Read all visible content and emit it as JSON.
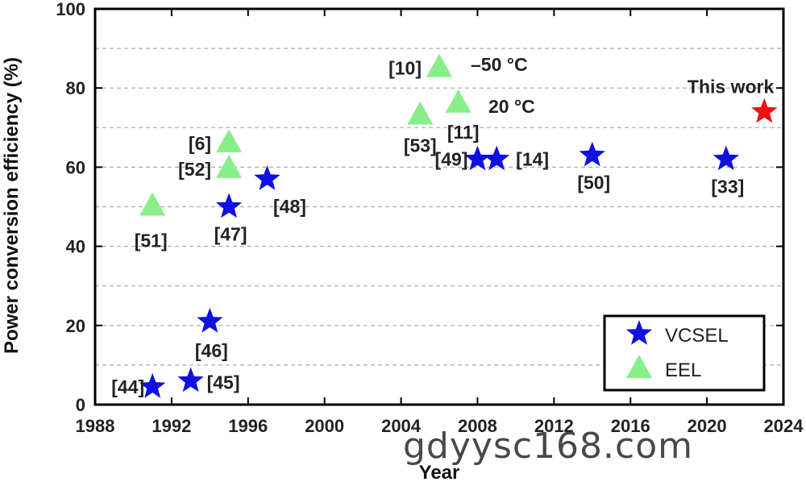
{
  "chart_data": {
    "type": "scatter",
    "xlabel": "Year",
    "ylabel": "Power conversion efficiency (%)",
    "xlim": [
      1988,
      2024
    ],
    "ylim": [
      0,
      100
    ],
    "x_ticks": [
      1988,
      1992,
      1996,
      2000,
      2004,
      2008,
      2012,
      2016,
      2020,
      2024
    ],
    "y_ticks": [
      0,
      20,
      40,
      60,
      80,
      100
    ],
    "grid": "horizontal dashed",
    "legend_position": "bottom-right",
    "series": [
      {
        "name": "VCSEL",
        "marker": "star",
        "color": "#1010e0",
        "points": [
          {
            "x": 1991,
            "y": 4.5,
            "label": "[44]"
          },
          {
            "x": 1993,
            "y": 6,
            "label": "[45]"
          },
          {
            "x": 1994,
            "y": 21,
            "label": "[46]"
          },
          {
            "x": 1995,
            "y": 50,
            "label": "[47]"
          },
          {
            "x": 1997,
            "y": 57,
            "label": "[48]"
          },
          {
            "x": 2008,
            "y": 62,
            "label": "[49]"
          },
          {
            "x": 2009,
            "y": 62,
            "label": "[14]"
          },
          {
            "x": 2014,
            "y": 63,
            "label": "[50]"
          },
          {
            "x": 2021,
            "y": 62,
            "label": "[33]"
          }
        ]
      },
      {
        "name": "EEL",
        "marker": "triangle",
        "color": "#88ee88",
        "points": [
          {
            "x": 1991,
            "y": 50,
            "label": "[51]"
          },
          {
            "x": 1995,
            "y": 66,
            "label": "[6]"
          },
          {
            "x": 1995,
            "y": 59.5,
            "label": "[52]"
          },
          {
            "x": 2005,
            "y": 73,
            "label": "[53]"
          },
          {
            "x": 2006,
            "y": 85,
            "label": "[10]"
          },
          {
            "x": 2007,
            "y": 76,
            "label": "[11]"
          }
        ]
      }
    ],
    "highlight": {
      "x": 2023,
      "y": 74,
      "label": "This work",
      "marker": "star",
      "color": "#ee1111"
    },
    "annotations": [
      {
        "text": "–50 °C"
      },
      {
        "text": "20 °C"
      }
    ]
  },
  "watermark": "gdyysc168.com"
}
